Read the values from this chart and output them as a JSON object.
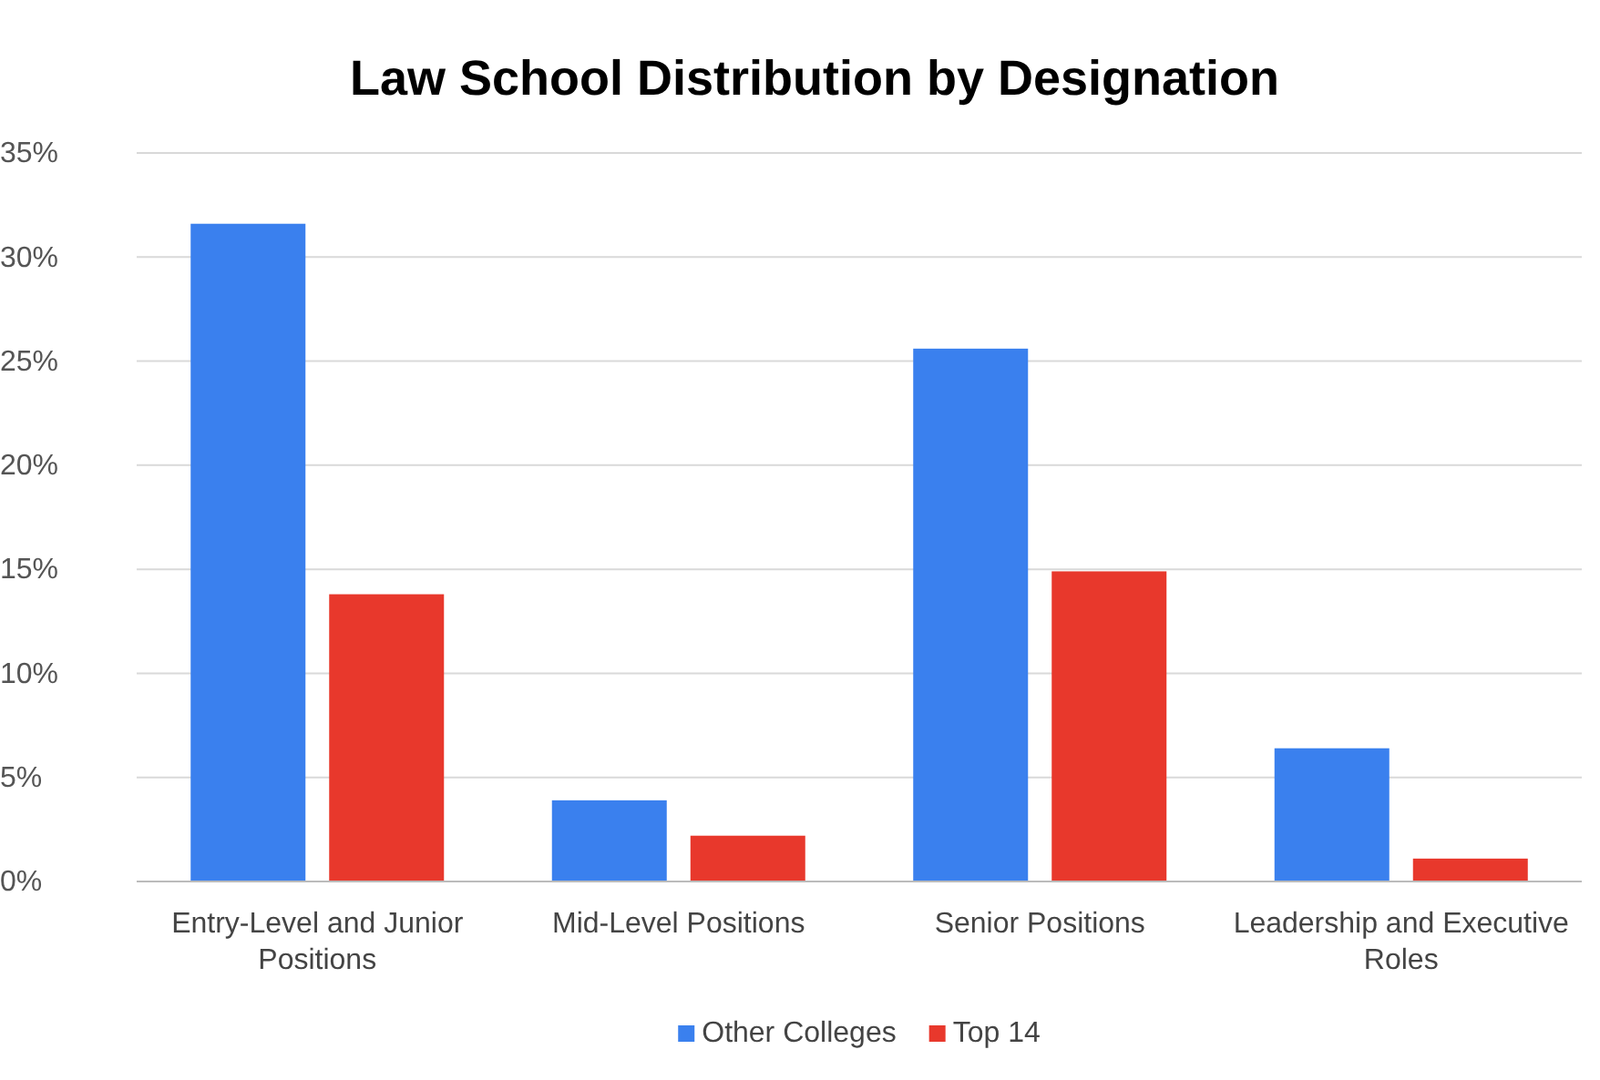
{
  "chart_data": {
    "type": "bar",
    "title": "Law School Distribution by Designation",
    "categories": [
      "Entry-Level and Junior Positions",
      "Mid-Level Positions",
      "Senior Positions",
      "Leadership and Executive Roles"
    ],
    "series": [
      {
        "name": "Other Colleges",
        "color": "#3a80ee",
        "values": [
          31.6,
          3.9,
          25.6,
          6.4
        ]
      },
      {
        "name": "Top 14",
        "color": "#e8382c",
        "values": [
          13.8,
          2.2,
          14.9,
          1.1
        ]
      }
    ],
    "ylim": [
      0,
      35
    ],
    "yticks": [
      {
        "value": 0,
        "label": "0%"
      },
      {
        "value": 5,
        "label": "5%"
      },
      {
        "value": 10,
        "label": "10%"
      },
      {
        "value": 15,
        "label": "15%"
      },
      {
        "value": 20,
        "label": "20%"
      },
      {
        "value": 25,
        "label": "25%"
      },
      {
        "value": 30,
        "label": "30%"
      },
      {
        "value": 35,
        "label": "35%"
      }
    ],
    "grid": "y",
    "legend": "bottom"
  }
}
